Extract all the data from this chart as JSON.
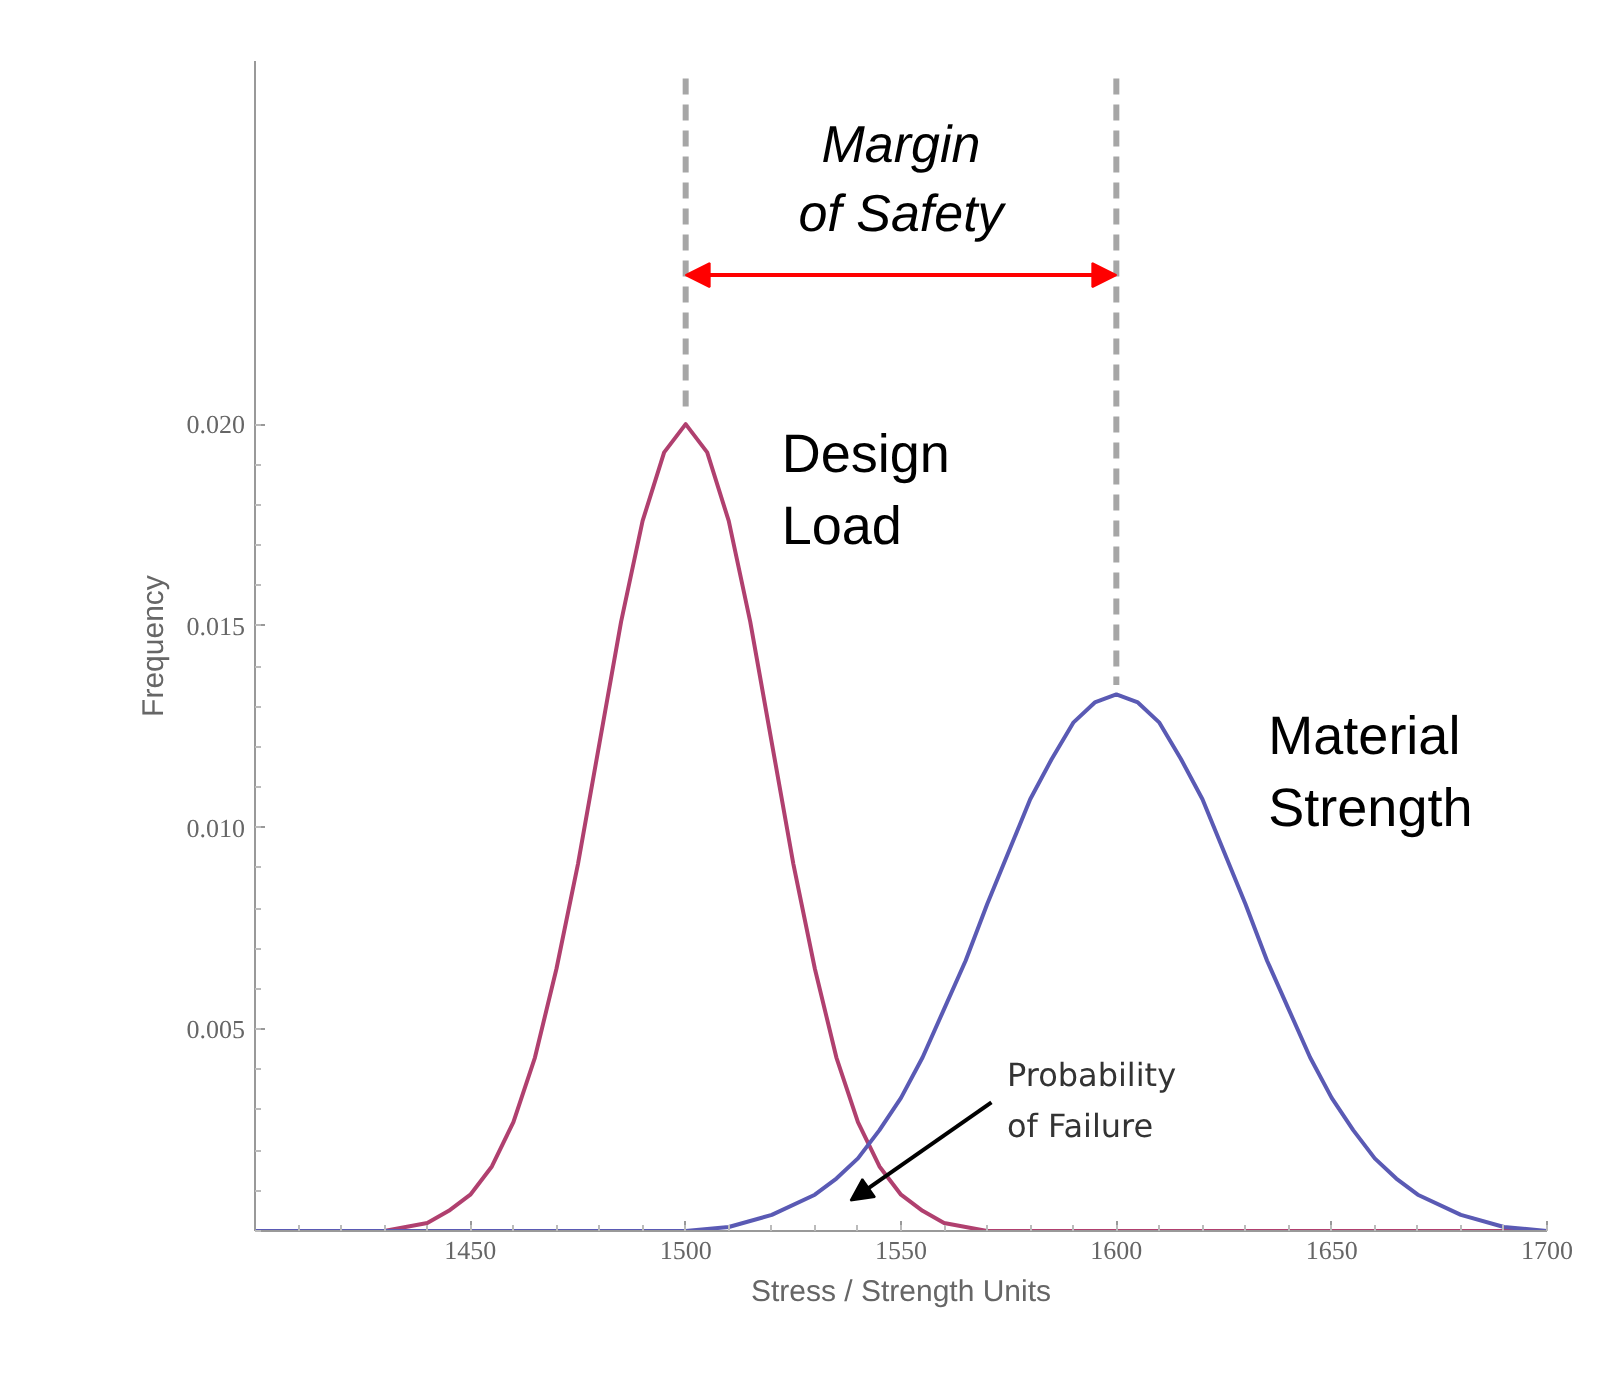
{
  "chart_data": {
    "type": "line",
    "xlabel": "Stress / Strength Units",
    "ylabel": "Frequency",
    "xlim": [
      1400,
      1700
    ],
    "xticks": [
      1450,
      1500,
      1550,
      1600,
      1650,
      1700
    ],
    "ylim": [
      0,
      0.029
    ],
    "yticks": [
      {
        "value": 0.005,
        "label": "0.005"
      },
      {
        "value": 0.01,
        "label": "0.010"
      },
      {
        "value": 0.015,
        "label": "0.015"
      },
      {
        "value": 0.02,
        "label": "0.020"
      }
    ],
    "grid": false,
    "marker": "none",
    "line_style": "solid",
    "series": [
      {
        "name": "Design Load",
        "color": "#b0406f",
        "x": [
          1400,
          1420,
          1430,
          1440,
          1445,
          1450,
          1455,
          1460,
          1465,
          1470,
          1475,
          1480,
          1485,
          1490,
          1495,
          1500,
          1505,
          1510,
          1515,
          1520,
          1525,
          1530,
          1535,
          1540,
          1545,
          1550,
          1555,
          1560,
          1570,
          1580,
          1700
        ],
        "values": [
          0,
          0,
          0,
          0.0002,
          0.0005,
          0.0009,
          0.0016,
          0.0027,
          0.0043,
          0.0065,
          0.0091,
          0.0121,
          0.0151,
          0.0176,
          0.0193,
          0.02,
          0.0193,
          0.0176,
          0.0151,
          0.0121,
          0.0091,
          0.0065,
          0.0043,
          0.0027,
          0.0016,
          0.0009,
          0.0005,
          0.0002,
          0,
          0,
          0
        ]
      },
      {
        "name": "Material Strength",
        "color": "#5a5ab4",
        "x": [
          1400,
          1480,
          1500,
          1510,
          1520,
          1530,
          1535,
          1540,
          1545,
          1550,
          1555,
          1560,
          1565,
          1570,
          1575,
          1580,
          1585,
          1590,
          1595,
          1600,
          1605,
          1610,
          1615,
          1620,
          1625,
          1630,
          1635,
          1640,
          1645,
          1650,
          1655,
          1660,
          1665,
          1670,
          1680,
          1690,
          1700
        ],
        "values": [
          0,
          0,
          0,
          0.0001,
          0.0004,
          0.0009,
          0.0013,
          0.0018,
          0.0025,
          0.0033,
          0.0043,
          0.0055,
          0.0067,
          0.0081,
          0.0094,
          0.0107,
          0.0117,
          0.0126,
          0.0131,
          0.0133,
          0.0131,
          0.0126,
          0.0117,
          0.0107,
          0.0094,
          0.0081,
          0.0067,
          0.0055,
          0.0043,
          0.0033,
          0.0025,
          0.0018,
          0.0013,
          0.0009,
          0.0004,
          0.0001,
          0
        ]
      }
    ],
    "ref_lines": [
      {
        "axis": "x",
        "value": 1500,
        "label": null,
        "color": "#a6a6a6",
        "line_style": "dashed"
      },
      {
        "axis": "x",
        "value": 1600,
        "label": null,
        "color": "#a6a6a6",
        "line_style": "dashed"
      }
    ],
    "annotations": [
      "Margin of Safety",
      "Probability of Failure"
    ]
  }
}
